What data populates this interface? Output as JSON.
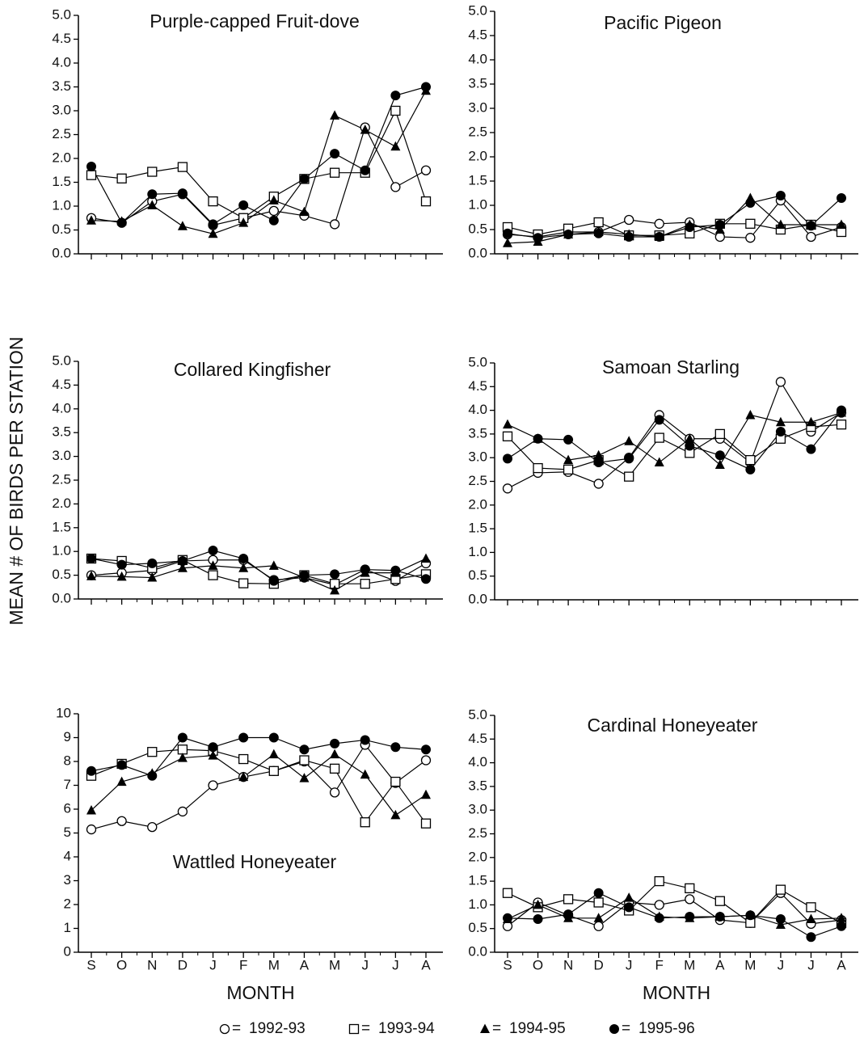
{
  "chart_data": [
    {
      "type": "line",
      "title": "Purple-capped Fruit-dove",
      "categories": [
        null,
        null,
        null,
        null,
        null,
        null,
        null,
        null,
        null,
        null,
        null,
        null
      ],
      "ylim": [
        0,
        5
      ],
      "yticks": [
        {
          "value": 0,
          "label": "0.0"
        },
        0.5,
        {
          "value": 1,
          "label": "1.0"
        },
        1.5,
        {
          "value": 2,
          "label": "2.0"
        },
        2.5,
        {
          "value": 3,
          "label": "3.0"
        },
        3.5,
        {
          "value": 4,
          "label": "4.0"
        },
        4.5,
        {
          "value": 5,
          "label": "5.0"
        }
      ],
      "series": [
        {
          "name": "1992-93",
          "marker": "open-circle",
          "color": "#000000",
          "values": [
            0.75,
            0.65,
            1.1,
            1.25,
            0.6,
            0.75,
            0.9,
            0.8,
            0.62,
            2.65,
            1.4,
            1.75
          ]
        },
        {
          "name": "1993-94",
          "marker": "open-square",
          "color": "#000000",
          "values": [
            1.65,
            1.58,
            1.72,
            1.82,
            1.1,
            0.75,
            1.2,
            1.57,
            1.7,
            1.7,
            3.0,
            1.1
          ]
        },
        {
          "name": "1994-95",
          "marker": "filled-triangle",
          "color": "#000000",
          "values": [
            0.7,
            0.68,
            1.02,
            0.58,
            0.42,
            0.65,
            1.12,
            0.88,
            2.9,
            2.6,
            2.25,
            3.42
          ]
        },
        {
          "name": "1995-96",
          "marker": "filled-circle",
          "color": "#000000",
          "values": [
            1.83,
            0.65,
            1.25,
            1.27,
            0.62,
            1.02,
            0.7,
            1.57,
            2.1,
            1.75,
            3.32,
            3.5
          ]
        }
      ]
    },
    {
      "type": "line",
      "title": "Pacific Pigeon",
      "categories": [
        null,
        null,
        null,
        null,
        null,
        null,
        null,
        null,
        null,
        null,
        null,
        null
      ],
      "ylim": [
        0,
        5
      ],
      "yticks": [
        {
          "value": 0,
          "label": "0.0"
        },
        0.5,
        {
          "value": 1,
          "label": "1.0"
        },
        1.5,
        {
          "value": 2,
          "label": "2.0"
        },
        2.5,
        {
          "value": 3,
          "label": "3.0"
        },
        3.5,
        {
          "value": 4,
          "label": "4.0"
        },
        4.5,
        {
          "value": 5,
          "label": "5.0"
        }
      ],
      "series": [
        {
          "name": "1992-93",
          "marker": "open-circle",
          "color": "#000000",
          "values": [
            0.4,
            0.35,
            0.45,
            0.45,
            0.7,
            0.62,
            0.65,
            0.35,
            0.33,
            1.1,
            0.35,
            0.55
          ]
        },
        {
          "name": "1993-94",
          "marker": "open-square",
          "color": "#000000",
          "values": [
            0.55,
            0.4,
            0.52,
            0.65,
            0.38,
            0.38,
            0.42,
            0.62,
            0.62,
            0.5,
            0.6,
            0.45
          ]
        },
        {
          "name": "1994-95",
          "marker": "filled-triangle",
          "color": "#000000",
          "values": [
            0.22,
            0.25,
            0.4,
            0.45,
            0.4,
            0.35,
            0.6,
            0.5,
            1.15,
            0.6,
            0.6,
            0.6
          ]
        },
        {
          "name": "1995-96",
          "marker": "filled-circle",
          "color": "#000000",
          "values": [
            0.42,
            0.33,
            0.4,
            0.42,
            0.35,
            0.35,
            0.55,
            0.6,
            1.05,
            1.2,
            0.58,
            1.15
          ]
        }
      ]
    },
    {
      "type": "line",
      "title": "Collared Kingfisher",
      "categories": [
        null,
        null,
        null,
        null,
        null,
        null,
        null,
        null,
        null,
        null,
        null,
        null
      ],
      "ylim": [
        0,
        5
      ],
      "yticks": [
        {
          "value": 0,
          "label": "0.0"
        },
        0.5,
        {
          "value": 1,
          "label": "1.0"
        },
        1.5,
        {
          "value": 2,
          "label": "2.0"
        },
        2.5,
        {
          "value": 3,
          "label": "3.0"
        },
        3.5,
        {
          "value": 4,
          "label": "4.0"
        },
        4.5,
        {
          "value": 5,
          "label": "5.0"
        }
      ],
      "series": [
        {
          "name": "1992-93",
          "marker": "open-circle",
          "color": "#000000",
          "values": [
            0.5,
            0.55,
            0.6,
            0.8,
            0.82,
            0.82,
            0.4,
            0.45,
            0.3,
            0.62,
            0.38,
            0.75
          ]
        },
        {
          "name": "1993-94",
          "marker": "open-square",
          "color": "#000000",
          "values": [
            0.85,
            0.8,
            0.65,
            0.82,
            0.5,
            0.33,
            0.32,
            0.5,
            0.32,
            0.32,
            0.42,
            0.52
          ]
        },
        {
          "name": "1994-95",
          "marker": "filled-triangle",
          "color": "#000000",
          "values": [
            0.48,
            0.47,
            0.45,
            0.65,
            0.7,
            0.65,
            0.7,
            0.45,
            0.18,
            0.55,
            0.55,
            0.85
          ]
        },
        {
          "name": "1995-96",
          "marker": "filled-circle",
          "color": "#000000",
          "values": [
            0.85,
            0.72,
            0.75,
            0.8,
            1.02,
            0.85,
            0.38,
            0.5,
            0.52,
            0.62,
            0.6,
            0.42
          ]
        }
      ]
    },
    {
      "type": "line",
      "title": "Samoan Starling",
      "categories": [
        null,
        null,
        null,
        null,
        null,
        null,
        null,
        null,
        null,
        null,
        null,
        null
      ],
      "ylim": [
        0,
        5
      ],
      "yticks": [
        {
          "value": 0,
          "label": "0.0"
        },
        0.5,
        {
          "value": 1,
          "label": "1.0"
        },
        1.5,
        {
          "value": 2,
          "label": "2.0"
        },
        2.5,
        {
          "value": 3,
          "label": "3.0"
        },
        3.5,
        {
          "value": 4,
          "label": "4.0"
        },
        4.5,
        {
          "value": 5,
          "label": "5.0"
        }
      ],
      "series": [
        {
          "name": "1992-93",
          "marker": "open-circle",
          "color": "#000000",
          "values": [
            2.35,
            2.68,
            2.7,
            2.45,
            3.0,
            3.9,
            3.4,
            3.4,
            2.9,
            4.6,
            3.55,
            3.95
          ]
        },
        {
          "name": "1993-94",
          "marker": "open-square",
          "color": "#000000",
          "values": [
            3.45,
            2.78,
            2.75,
            2.95,
            2.6,
            3.42,
            3.1,
            3.5,
            2.95,
            3.4,
            3.65,
            3.7
          ]
        },
        {
          "name": "1994-95",
          "marker": "filled-triangle",
          "color": "#000000",
          "values": [
            3.7,
            3.4,
            2.95,
            3.05,
            3.35,
            2.9,
            3.4,
            2.85,
            3.9,
            3.75,
            3.75,
            3.95
          ]
        },
        {
          "name": "1995-96",
          "marker": "filled-circle",
          "color": "#000000",
          "values": [
            2.98,
            3.4,
            3.38,
            2.9,
            2.98,
            3.8,
            3.25,
            3.05,
            2.75,
            3.55,
            3.18,
            4.0
          ]
        }
      ]
    },
    {
      "type": "line",
      "title": "Wattled Honeyeater",
      "x_label": "MONTH",
      "categories": [
        "S",
        "O",
        "N",
        "D",
        "J",
        "F",
        "M",
        "A",
        "M",
        "J",
        "J",
        "A"
      ],
      "ylim": [
        0,
        10
      ],
      "yticks": [
        0,
        1,
        2,
        3,
        4,
        5,
        6,
        7,
        8,
        9,
        10
      ],
      "series": [
        {
          "name": "1992-93",
          "marker": "open-circle",
          "color": "#000000",
          "values": [
            5.15,
            5.5,
            5.25,
            5.9,
            7.0,
            7.35,
            7.6,
            8.0,
            6.7,
            8.7,
            7.1,
            8.05
          ]
        },
        {
          "name": "1993-94",
          "marker": "open-square",
          "color": "#000000",
          "values": [
            7.4,
            7.9,
            8.4,
            8.5,
            8.45,
            8.1,
            7.6,
            8.05,
            7.7,
            5.45,
            7.15,
            5.4
          ]
        },
        {
          "name": "1994-95",
          "marker": "filled-triangle",
          "color": "#000000",
          "values": [
            5.95,
            7.15,
            7.5,
            8.15,
            8.25,
            7.35,
            8.3,
            7.3,
            8.3,
            7.45,
            5.75,
            6.6
          ]
        },
        {
          "name": "1995-96",
          "marker": "filled-circle",
          "color": "#000000",
          "values": [
            7.6,
            7.85,
            7.4,
            9.0,
            8.6,
            9.0,
            9.0,
            8.5,
            8.75,
            8.9,
            8.6,
            8.5
          ]
        }
      ]
    },
    {
      "type": "line",
      "title": "Cardinal Honeyeater",
      "x_label": "MONTH",
      "categories": [
        "S",
        "O",
        "N",
        "D",
        "J",
        "F",
        "M",
        "A",
        "M",
        "J",
        "J",
        "A"
      ],
      "ylim": [
        0,
        5
      ],
      "yticks": [
        {
          "value": 0,
          "label": "0.0"
        },
        0.5,
        {
          "value": 1,
          "label": "1.0"
        },
        1.5,
        {
          "value": 2,
          "label": "2.0"
        },
        2.5,
        {
          "value": 3,
          "label": "3.0"
        },
        3.5,
        {
          "value": 4,
          "label": "4.0"
        },
        4.5,
        {
          "value": 5,
          "label": "5.0"
        }
      ],
      "series": [
        {
          "name": "1992-93",
          "marker": "open-circle",
          "color": "#000000",
          "values": [
            0.55,
            1.05,
            0.78,
            0.55,
            1.05,
            1.0,
            1.12,
            0.68,
            0.62,
            1.25,
            0.6,
            0.68
          ]
        },
        {
          "name": "1993-94",
          "marker": "open-square",
          "color": "#000000",
          "values": [
            1.25,
            0.95,
            1.12,
            1.05,
            0.88,
            1.5,
            1.35,
            1.08,
            0.62,
            1.32,
            0.95,
            0.62
          ]
        },
        {
          "name": "1994-95",
          "marker": "filled-triangle",
          "color": "#000000",
          "values": [
            0.7,
            1.0,
            0.72,
            0.72,
            1.15,
            0.75,
            0.72,
            0.75,
            0.78,
            0.58,
            0.7,
            0.72
          ]
        },
        {
          "name": "1995-96",
          "marker": "filled-circle",
          "color": "#000000",
          "values": [
            0.72,
            0.7,
            0.8,
            1.25,
            0.95,
            0.72,
            0.75,
            0.75,
            0.78,
            0.7,
            0.32,
            0.55
          ]
        }
      ]
    }
  ],
  "y_label": "MEAN # OF BIRDS PER STATION",
  "legend_separator": "="
}
